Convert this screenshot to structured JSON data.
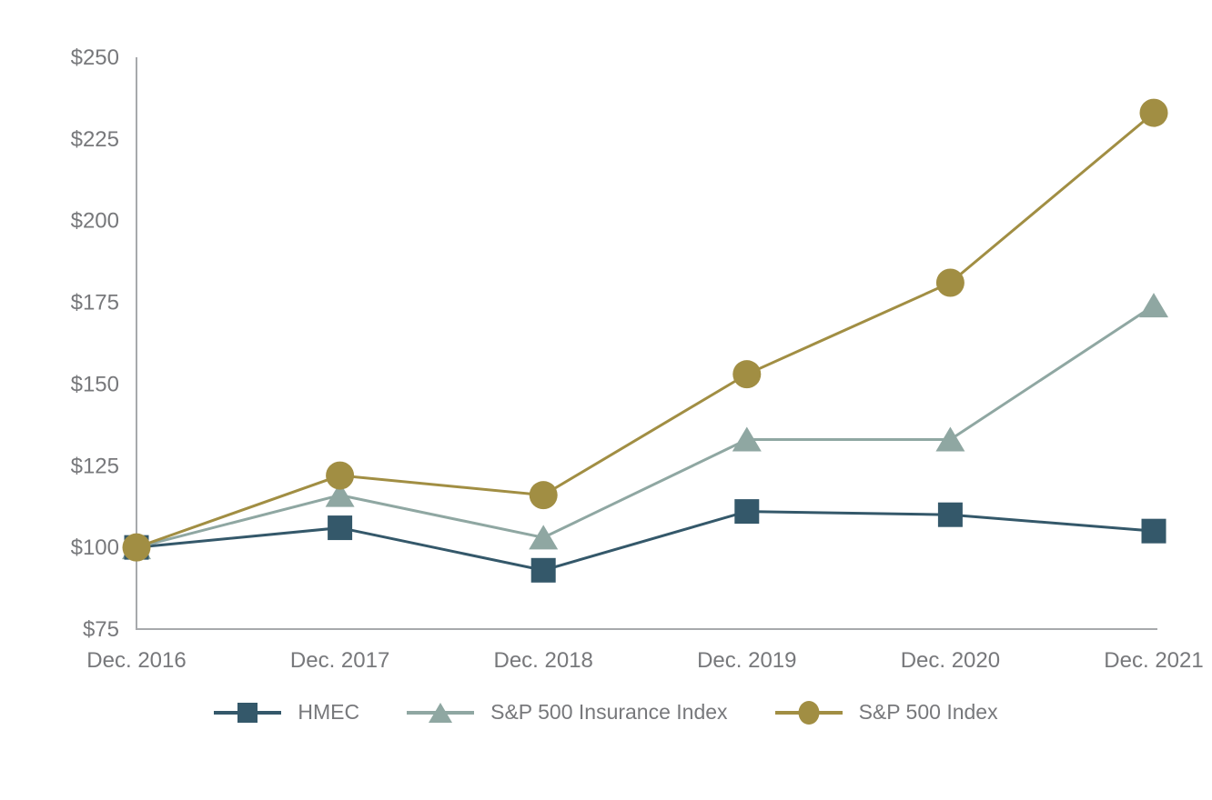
{
  "page": {
    "background_color": "#FFFFFF"
  },
  "chart_data": {
    "type": "line",
    "title": "",
    "xlabel": "",
    "ylabel": "",
    "categories": [
      "Dec. 2016",
      "Dec. 2017",
      "Dec. 2018",
      "Dec. 2019",
      "Dec. 2020",
      "Dec. 2021"
    ],
    "series": [
      {
        "name": "HMEC",
        "marker": "square",
        "color": "#34586A",
        "values": [
          100,
          106,
          93,
          111,
          110,
          105
        ]
      },
      {
        "name": "S&P 500 Insurance Index",
        "marker": "triangle",
        "color": "#8FA7A2",
        "values": [
          100,
          116,
          103,
          133,
          133,
          174
        ]
      },
      {
        "name": "S&P 500 Index",
        "marker": "circle",
        "color": "#A18E43",
        "values": [
          100,
          122,
          116,
          153,
          181,
          233
        ]
      }
    ],
    "ylim": [
      75,
      250
    ],
    "y_ticks": [
      75,
      100,
      125,
      150,
      175,
      200,
      225,
      250
    ],
    "y_tick_prefix": "$",
    "grid": false,
    "legend_position": "bottom",
    "axis_color": "#A7A9AC",
    "text_color": "#77787B"
  }
}
